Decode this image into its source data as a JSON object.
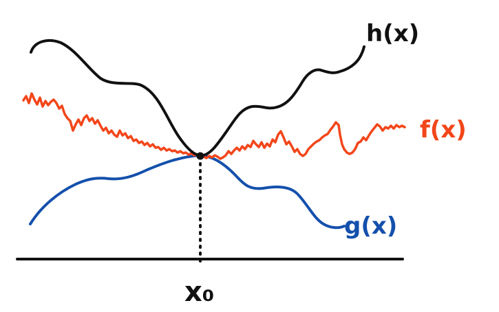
{
  "labels": {
    "h": "h(x)",
    "f": "f(x)",
    "g": "g(x)",
    "x0": "x₀"
  },
  "colors": {
    "h": "#111111",
    "f": "#f2461a",
    "g": "#1450ac",
    "axis": "#111111",
    "point": "#111111",
    "background": "#ffffff"
  },
  "elements": {
    "axis": "horizontal axis line",
    "marker": "dotted vertical line from the touching point down to the axis",
    "touch_point": "point where h(x), f(x) and g(x) meet"
  }
}
